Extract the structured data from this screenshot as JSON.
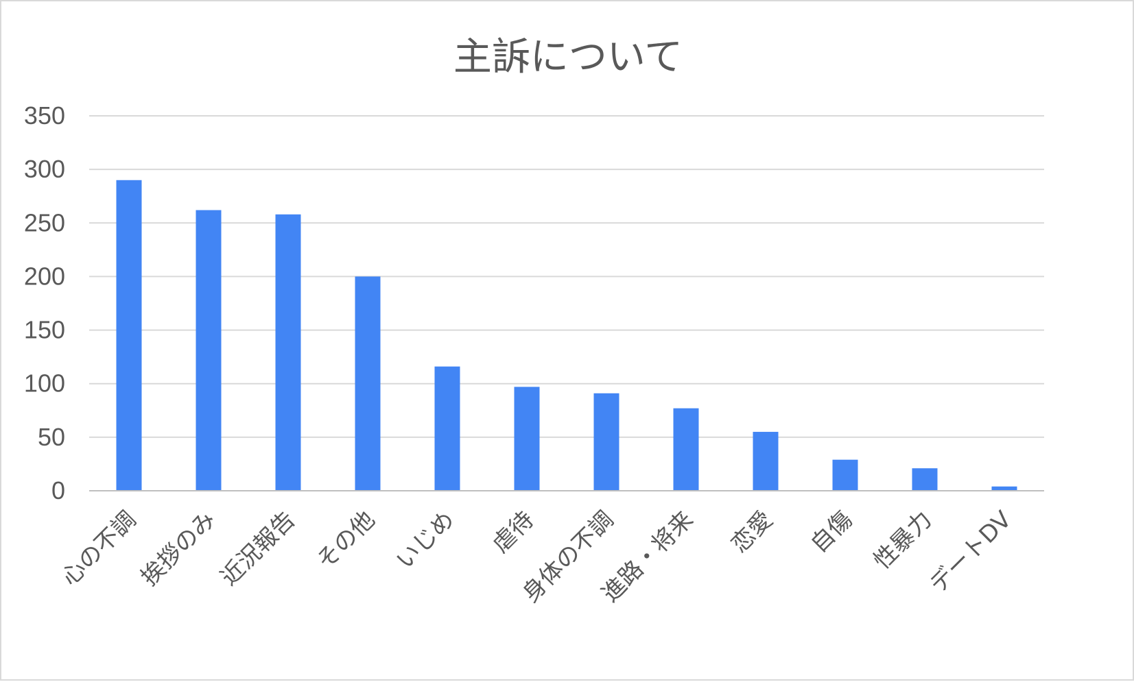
{
  "chart_data": {
    "type": "bar",
    "title": "主訴について",
    "xlabel": "",
    "ylabel": "",
    "categories": [
      "心の不調",
      "挨拶のみ",
      "近況報告",
      "その他",
      "いじめ",
      "虐待",
      "身体の不調",
      "進路・将来",
      "恋愛",
      "自傷",
      "性暴力",
      "デートDV"
    ],
    "values": [
      290,
      262,
      258,
      200,
      116,
      97,
      91,
      77,
      55,
      29,
      21,
      4
    ],
    "ylim": [
      0,
      350
    ],
    "yticks": [
      "0",
      "50",
      "100",
      "150",
      "200",
      "250",
      "300",
      "350"
    ],
    "grid": true,
    "legend": "none",
    "colors": {
      "bar": "#4285f4",
      "grid": "#d9d9d9",
      "text": "#595959"
    }
  }
}
